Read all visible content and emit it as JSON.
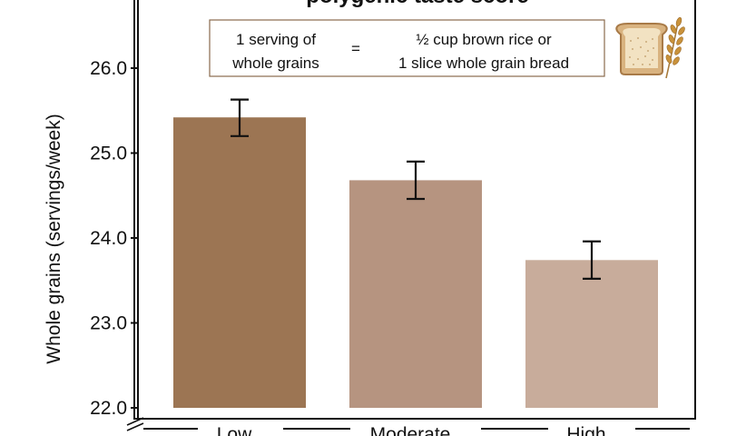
{
  "chart_data": {
    "type": "bar",
    "title": "polygenic taste score",
    "ylabel": "Whole grains (servings/week)",
    "xlabel": "",
    "categories": [
      "Low",
      "Moderate",
      "High"
    ],
    "values": [
      25.42,
      24.68,
      23.74
    ],
    "error_low": [
      25.2,
      24.46,
      23.52
    ],
    "error_high": [
      25.63,
      24.9,
      23.96
    ],
    "ylim": [
      22.0,
      26.8
    ],
    "yticks": [
      "22.0",
      "23.0",
      "24.0",
      "25.0",
      "26.0"
    ],
    "ytick_values": [
      22.0,
      23.0,
      24.0,
      25.0,
      26.0
    ],
    "bar_colors": [
      "#9c7553",
      "#b69480",
      "#c8ac9b"
    ],
    "grid": false,
    "y_axis_break": true
  },
  "note": {
    "left_line1": "1 serving of",
    "left_line2": "whole grains",
    "equals": "=",
    "right_line1": "½ cup brown rice or",
    "right_line2": "1 slice whole grain bread"
  },
  "icons": {
    "bread": "bread-slice-icon",
    "wheat": "wheat-icon"
  }
}
